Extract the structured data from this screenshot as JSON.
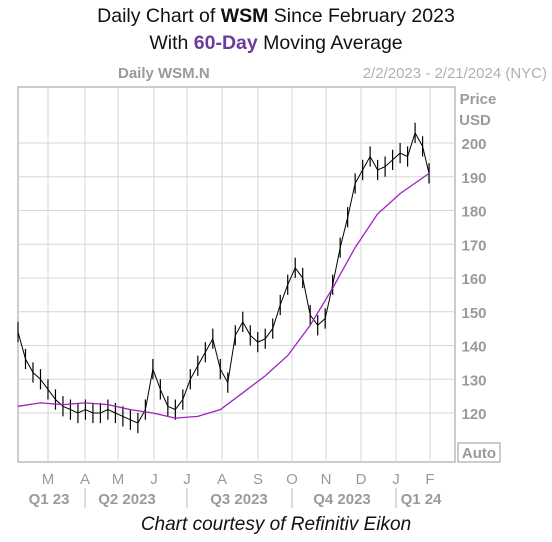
{
  "header": {
    "line1_pre": "Daily Chart of ",
    "line1_ticker": "WSM",
    "line1_post": " Since February 2023",
    "line2_pre": "With ",
    "line2_ma": "60-Day",
    "line2_post": " Moving Average"
  },
  "credit": "Chart courtesy of Refinitiv Eikon",
  "chart_data": {
    "type": "line",
    "title": "Daily WSM.N",
    "date_range": "2/2/2023 - 2/21/2024 (NYC)",
    "ylabel": "Price",
    "yunit": "USD",
    "ylim": [
      115,
      198
    ],
    "auto_label": "Auto",
    "y_ticks": [
      120,
      130,
      140,
      150,
      160,
      170,
      180,
      190,
      200
    ],
    "x_months": [
      "M",
      "A",
      "M",
      "J",
      "J",
      "A",
      "S",
      "O",
      "N",
      "D",
      "J",
      "F"
    ],
    "quarters": [
      "Q1 23",
      "Q2 2023",
      "Q3 2023",
      "Q4 2023",
      "Q1 24"
    ],
    "grid": true,
    "colors": {
      "price": "#000000",
      "ma": "#a020c0",
      "grid": "#d6d6d6",
      "label": "#9a9a9a"
    },
    "series": [
      {
        "name": "WSM.N",
        "x": [
          "2023-02-02",
          "2023-02-09",
          "2023-02-16",
          "2023-02-23",
          "2023-03-02",
          "2023-03-09",
          "2023-03-16",
          "2023-03-23",
          "2023-03-30",
          "2023-04-06",
          "2023-04-13",
          "2023-04-20",
          "2023-04-27",
          "2023-05-04",
          "2023-05-11",
          "2023-05-18",
          "2023-05-25",
          "2023-06-01",
          "2023-06-08",
          "2023-06-15",
          "2023-06-22",
          "2023-06-29",
          "2023-07-06",
          "2023-07-13",
          "2023-07-20",
          "2023-07-27",
          "2023-08-03",
          "2023-08-10",
          "2023-08-17",
          "2023-08-24",
          "2023-08-31",
          "2023-09-07",
          "2023-09-14",
          "2023-09-21",
          "2023-09-28",
          "2023-10-05",
          "2023-10-12",
          "2023-10-19",
          "2023-10-26",
          "2023-11-02",
          "2023-11-09",
          "2023-11-16",
          "2023-11-23",
          "2023-11-30",
          "2023-12-07",
          "2023-12-14",
          "2023-12-21",
          "2023-12-28",
          "2024-01-04",
          "2024-01-11",
          "2024-01-18",
          "2024-01-25",
          "2024-02-01",
          "2024-02-08",
          "2024-02-15",
          "2024-02-21"
        ],
        "values": [
          144,
          136,
          132,
          130,
          127,
          124,
          122,
          121,
          120,
          121,
          120,
          120,
          121,
          120,
          119,
          118,
          117,
          121,
          133,
          127,
          122,
          121,
          124,
          130,
          134,
          138,
          142,
          133,
          129,
          143,
          147,
          143,
          141,
          142,
          145,
          152,
          158,
          163,
          160,
          149,
          146,
          148,
          158,
          169,
          178,
          188,
          192,
          196,
          192,
          193,
          195,
          197,
          196,
          203,
          199,
          191
        ]
      },
      {
        "name": "60-Day",
        "x": [
          "2023-02-02",
          "2023-02-23",
          "2023-03-16",
          "2023-04-06",
          "2023-04-27",
          "2023-05-18",
          "2023-06-08",
          "2023-06-29",
          "2023-07-20",
          "2023-08-10",
          "2023-08-31",
          "2023-09-21",
          "2023-10-12",
          "2023-11-02",
          "2023-11-23",
          "2023-12-14",
          "2024-01-04",
          "2024-01-25",
          "2024-02-21"
        ],
        "values": [
          122,
          123,
          122.5,
          123,
          122.5,
          121,
          120,
          118.5,
          119,
          121,
          126,
          131,
          137,
          146,
          157,
          169,
          179,
          185,
          191
        ]
      }
    ]
  }
}
